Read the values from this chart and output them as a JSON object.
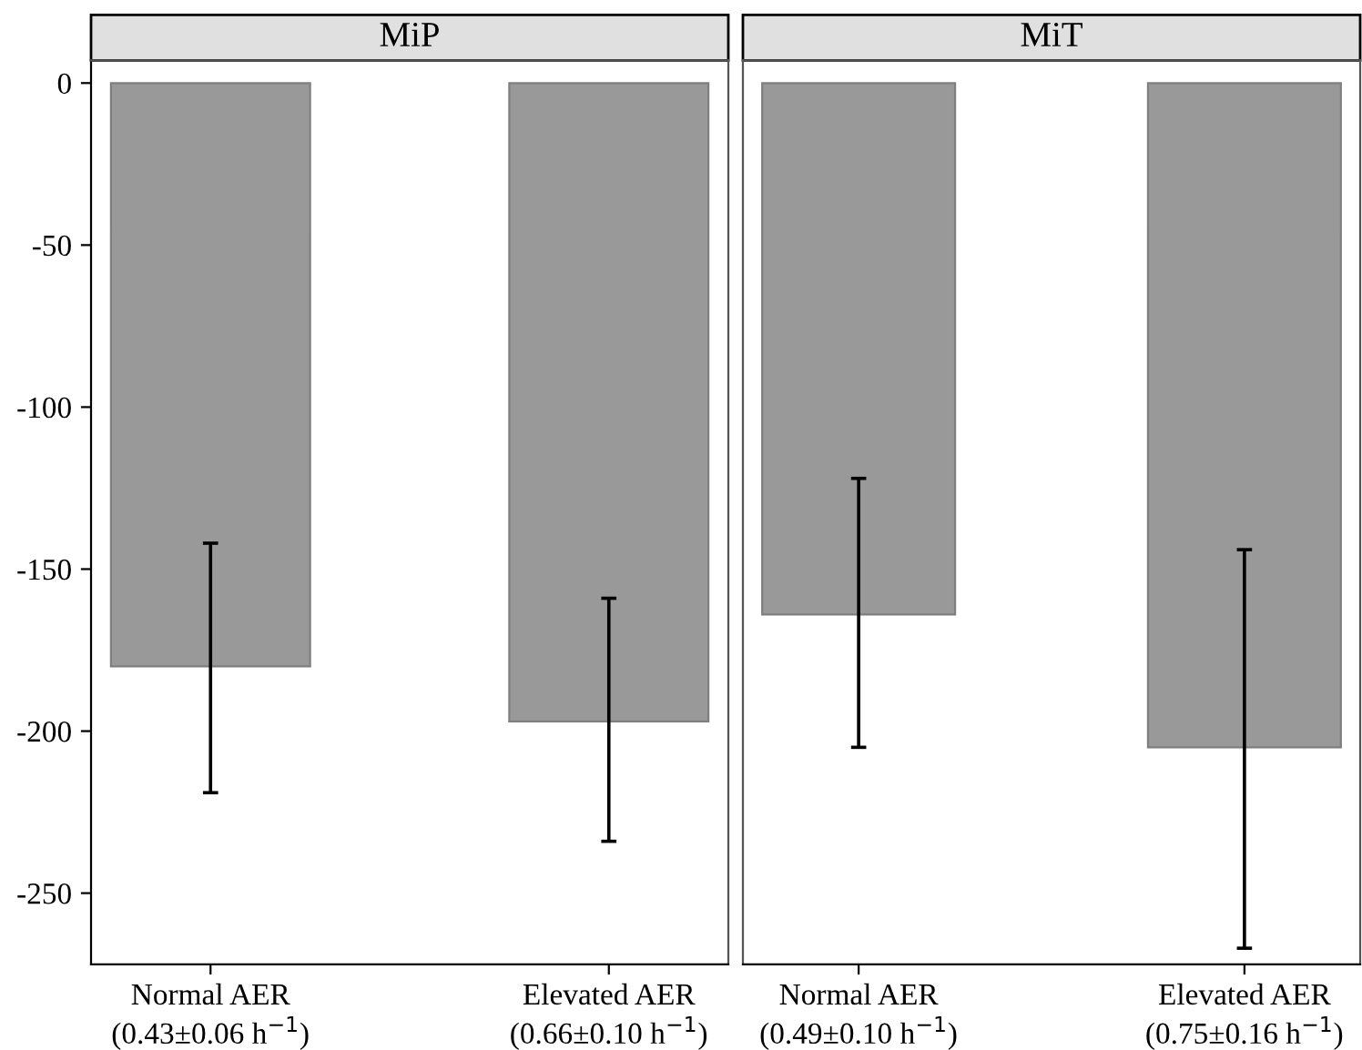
{
  "chart_data": [
    {
      "type": "bar",
      "title": "MiP",
      "categories": [
        "Normal AER\n(0.43±0.06 h$^{−1}$)",
        "Elevated AER\n(0.66±0.10 h$^{−1}$)"
      ],
      "values": [
        -180,
        -197
      ],
      "color": "#999999",
      "errors": [
        [
          -219,
          -142
        ],
        [
          -234,
          -159
        ]
      ],
      "ylim": [
        -272,
        7
      ],
      "yticks": [
        0,
        -50,
        -100,
        -150,
        -200,
        -250
      ],
      "grid": false
    },
    {
      "type": "bar",
      "title": "MiT",
      "categories": [
        "Normal AER\n(0.49±0.10 h$^{−1}$)",
        "Elevated AER\n(0.75±0.16 h$^{−1}$)"
      ],
      "values": [
        -164,
        -205
      ],
      "color": "#999999",
      "errors": [
        [
          -205,
          -122
        ],
        [
          -267,
          -144
        ]
      ],
      "ylim": [
        -272,
        7
      ],
      "yticks": [
        0,
        -50,
        -100,
        -150,
        -200,
        -250
      ],
      "grid": false,
      "tick_labels": "x"
    }
  ]
}
